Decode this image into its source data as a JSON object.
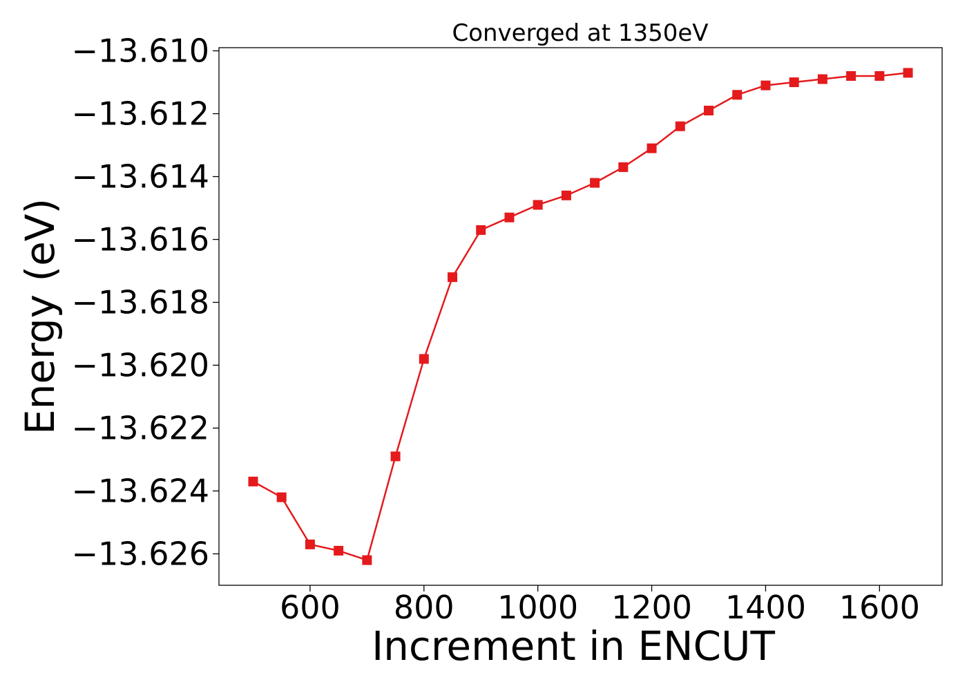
{
  "chart_data": {
    "type": "line",
    "title": "Converged at 1350eV",
    "xlabel": "Increment in ENCUT",
    "ylabel": "Energy (eV)",
    "xlim": [
      440,
      1710
    ],
    "ylim": [
      -13.627,
      -13.6099
    ],
    "xticks": [
      600,
      800,
      1000,
      1200,
      1400,
      1600
    ],
    "xtick_labels": [
      "600",
      "800",
      "1000",
      "1200",
      "1400",
      "1600"
    ],
    "yticks": [
      -13.61,
      -13.612,
      -13.614,
      -13.616,
      -13.618,
      -13.62,
      -13.622,
      -13.624,
      -13.626
    ],
    "ytick_labels": [
      "−13.610",
      "−13.612",
      "−13.614",
      "−13.616",
      "−13.618",
      "−13.620",
      "−13.622",
      "−13.624",
      "−13.626"
    ],
    "grid": false,
    "series": [
      {
        "color": "#e41a1c",
        "marker": "square",
        "x": [
          500,
          550,
          600,
          650,
          700,
          750,
          800,
          850,
          900,
          950,
          1000,
          1050,
          1100,
          1150,
          1200,
          1250,
          1300,
          1350,
          1400,
          1450,
          1500,
          1550,
          1600,
          1650
        ],
        "y": [
          -13.6237,
          -13.6242,
          -13.6257,
          -13.6259,
          -13.6262,
          -13.6229,
          -13.6198,
          -13.6172,
          -13.6157,
          -13.6153,
          -13.6149,
          -13.6146,
          -13.6142,
          -13.6137,
          -13.6131,
          -13.6124,
          -13.6119,
          -13.6114,
          -13.6111,
          -13.611,
          -13.6109,
          -13.6108,
          -13.6108,
          -13.6107
        ]
      }
    ]
  }
}
